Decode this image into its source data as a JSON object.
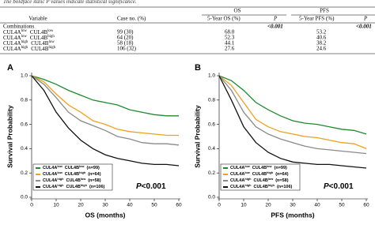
{
  "caption": [
    "The boldface italic ",
    "P",
    " values indicate statistical significance."
  ],
  "table": {
    "header_groups": [
      "OS",
      "PFS"
    ],
    "columns": [
      "Variable",
      "Case no. (%)",
      "5-Year OS (%)",
      "P",
      "5-Year PFS (%)",
      "P"
    ],
    "section": {
      "label": "Combinations",
      "os_p": "<0.001",
      "pfs_p": "<0.001"
    },
    "rows": [
      {
        "a": "CUL4A",
        "a_sup": "low",
        "b": "CUL4B",
        "b_sup": "low",
        "cases": "99 (30)",
        "os": "68.0",
        "pfs": "53.2"
      },
      {
        "a": "CUL4A",
        "a_sup": "low",
        "b": "CUL4B",
        "b_sup": "high",
        "cases": "64 (20)",
        "os": "52.3",
        "pfs": "40.6"
      },
      {
        "a": "CUL4A",
        "a_sup": "high",
        "b": "CUL4B",
        "b_sup": "low",
        "cases": "58 (18)",
        "os": "44.1",
        "pfs": "38.2"
      },
      {
        "a": "CUL4A",
        "a_sup": "high",
        "b": "CUL4B",
        "b_sup": "high",
        "cases": "106 (32)",
        "os": "27.6",
        "pfs": "24.6"
      }
    ]
  },
  "panels": [
    {
      "label": "A",
      "x_label": "OS (months)",
      "y_label": "Survival Probability",
      "p_label": "P",
      "p_value": "<0.001",
      "xlim": [
        0,
        60
      ],
      "xticks": [
        0,
        10,
        20,
        30,
        40,
        50,
        60
      ],
      "ylim": [
        0,
        1
      ],
      "yticks": [
        {
          "value": 0,
          "label": "0.0"
        },
        {
          "value": 0.2,
          "label": "0.2"
        },
        {
          "value": 0.4,
          "label": "0.4"
        },
        {
          "value": 0.6,
          "label": "0.6"
        },
        {
          "value": 0.8,
          "label": "0.8"
        },
        {
          "value": 1,
          "label": "1.0"
        }
      ],
      "x": [
        0,
        5,
        10,
        15,
        20,
        25,
        30,
        35,
        40,
        45,
        50,
        55,
        60
      ],
      "series": [
        {
          "a": "CUL4A",
          "a_sup": "low",
          "b": "CUL4B",
          "b_sup": "low",
          "n": "(n=99)",
          "color": "#1e8b2e",
          "values": [
            1,
            0.97,
            0.93,
            0.88,
            0.84,
            0.8,
            0.78,
            0.76,
            0.72,
            0.7,
            0.68,
            0.67,
            0.67
          ]
        },
        {
          "a": "CUL4A",
          "a_sup": "low",
          "b": "CUL4B",
          "b_sup": "high",
          "n": "(n=64)",
          "color": "#f0a020",
          "values": [
            1,
            0.95,
            0.85,
            0.76,
            0.7,
            0.63,
            0.6,
            0.56,
            0.54,
            0.53,
            0.52,
            0.51,
            0.51
          ]
        },
        {
          "a": "CUL4A",
          "a_sup": "high",
          "b": "CUL4B",
          "b_sup": "low",
          "n": "(n=58)",
          "color": "#8a8a8a",
          "values": [
            1,
            0.93,
            0.82,
            0.7,
            0.63,
            0.59,
            0.55,
            0.5,
            0.48,
            0.45,
            0.44,
            0.44,
            0.43
          ]
        },
        {
          "a": "CUL4A",
          "a_sup": "high",
          "b": "CUL4B",
          "b_sup": "high",
          "n": "(n=106)",
          "color": "#111111",
          "values": [
            1,
            0.88,
            0.7,
            0.57,
            0.47,
            0.4,
            0.35,
            0.32,
            0.3,
            0.28,
            0.27,
            0.27,
            0.26
          ]
        }
      ]
    },
    {
      "label": "B",
      "x_label": "PFS (months)",
      "y_label": "Survival Probability",
      "p_label": "P",
      "p_value": "<0.001",
      "xlim": [
        0,
        60
      ],
      "xticks": [
        0,
        10,
        20,
        30,
        40,
        50,
        60
      ],
      "ylim": [
        0,
        1
      ],
      "yticks": [
        {
          "value": 0,
          "label": "0.0"
        },
        {
          "value": 0.2,
          "label": "0.2"
        },
        {
          "value": 0.4,
          "label": "0.4"
        },
        {
          "value": 0.6,
          "label": "0.6"
        },
        {
          "value": 0.8,
          "label": "0.8"
        },
        {
          "value": 1,
          "label": "1.0"
        }
      ],
      "x": [
        0,
        5,
        10,
        15,
        20,
        25,
        30,
        35,
        40,
        45,
        50,
        55,
        60
      ],
      "series": [
        {
          "a": "CUL4A",
          "a_sup": "low",
          "b": "CUL4B",
          "b_sup": "low",
          "n": "(n=99)",
          "color": "#1e8b2e",
          "values": [
            1,
            0.96,
            0.88,
            0.78,
            0.72,
            0.67,
            0.63,
            0.61,
            0.6,
            0.58,
            0.56,
            0.55,
            0.52
          ]
        },
        {
          "a": "CUL4A",
          "a_sup": "low",
          "b": "CUL4B",
          "b_sup": "high",
          "n": "(n=64)",
          "color": "#f0a020",
          "values": [
            1,
            0.92,
            0.78,
            0.64,
            0.58,
            0.54,
            0.52,
            0.5,
            0.49,
            0.47,
            0.45,
            0.44,
            0.4
          ]
        },
        {
          "a": "CUL4A",
          "a_sup": "high",
          "b": "CUL4B",
          "b_sup": "low",
          "n": "(n=58)",
          "color": "#8a8a8a",
          "values": [
            1,
            0.88,
            0.7,
            0.58,
            0.52,
            0.48,
            0.45,
            0.42,
            0.4,
            0.39,
            0.38,
            0.37,
            0.36
          ]
        },
        {
          "a": "CUL4A",
          "a_sup": "high",
          "b": "CUL4B",
          "b_sup": "high",
          "n": "(n=106)",
          "color": "#111111",
          "values": [
            1,
            0.8,
            0.58,
            0.45,
            0.37,
            0.32,
            0.29,
            0.28,
            0.27,
            0.27,
            0.26,
            0.25,
            0.24
          ]
        }
      ]
    }
  ]
}
